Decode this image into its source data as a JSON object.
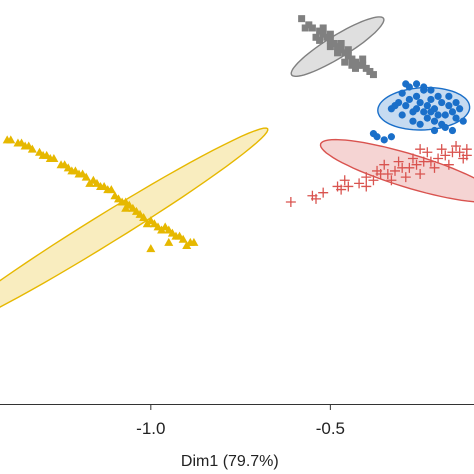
{
  "chart_data": {
    "type": "scatter",
    "title": "",
    "xlabel": "Dim1 (79.7%)",
    "ylabel": "",
    "xlim": [
      -1.42,
      -0.1
    ],
    "ylim": [
      -0.75,
      0.55
    ],
    "x_ticks": [
      {
        "value": -1.0,
        "label": "-1.0"
      },
      {
        "value": -0.5,
        "label": "-0.5"
      }
    ],
    "grid": false,
    "legend": "none",
    "series": [
      {
        "color": "#e6b800",
        "marker": "triangle",
        "ellipse": {
          "cx": -1.13,
          "cy": -0.19,
          "rx": 0.56,
          "ry": 0.045,
          "angle_deg": 35.6
        },
        "points": [
          [
            -1.4,
            0.1
          ],
          [
            -1.37,
            0.09
          ],
          [
            -1.35,
            0.08
          ],
          [
            -1.36,
            0.09
          ],
          [
            -1.33,
            0.07
          ],
          [
            -1.31,
            0.06
          ],
          [
            -1.3,
            0.05
          ],
          [
            -1.28,
            0.04
          ],
          [
            -1.27,
            0.04
          ],
          [
            -1.25,
            0.02
          ],
          [
            -1.24,
            0.02
          ],
          [
            -1.23,
            0.01
          ],
          [
            -1.21,
            0.0
          ],
          [
            -1.2,
            -0.01
          ],
          [
            -1.19,
            -0.01
          ],
          [
            -1.18,
            -0.02
          ],
          [
            -1.16,
            -0.03
          ],
          [
            -1.15,
            -0.04
          ],
          [
            -1.14,
            -0.05
          ],
          [
            -1.13,
            -0.05
          ],
          [
            -1.12,
            -0.06
          ],
          [
            -1.11,
            -0.06
          ],
          [
            -1.1,
            -0.08
          ],
          [
            -1.09,
            -0.09
          ],
          [
            -1.08,
            -0.1
          ],
          [
            -1.07,
            -0.1
          ],
          [
            -1.06,
            -0.11
          ],
          [
            -1.05,
            -0.12
          ],
          [
            -1.04,
            -0.13
          ],
          [
            -1.03,
            -0.14
          ],
          [
            -1.02,
            -0.15
          ],
          [
            -1.0,
            -0.16
          ],
          [
            -0.99,
            -0.17
          ],
          [
            -0.98,
            -0.18
          ],
          [
            -0.96,
            -0.18
          ],
          [
            -0.95,
            -0.19
          ],
          [
            -0.94,
            -0.2
          ],
          [
            -0.92,
            -0.21
          ],
          [
            -0.91,
            -0.22
          ],
          [
            -0.89,
            -0.23
          ],
          [
            -0.88,
            -0.23
          ],
          [
            -0.93,
            -0.21
          ],
          [
            -0.97,
            -0.19
          ],
          [
            -1.01,
            -0.17
          ],
          [
            -1.07,
            -0.12
          ],
          [
            -1.17,
            -0.04
          ],
          [
            -1.22,
            0.0
          ],
          [
            -1.29,
            0.05
          ],
          [
            -1.34,
            0.08
          ],
          [
            -1.39,
            0.1
          ],
          [
            -1.0,
            -0.25
          ],
          [
            -0.95,
            -0.23
          ],
          [
            -0.9,
            -0.24
          ]
        ]
      },
      {
        "color": "#808080",
        "marker": "square",
        "ellipse": {
          "cx": -0.48,
          "cy": 0.4,
          "rx": 0.157,
          "ry": 0.034,
          "angle_deg": 35.7
        },
        "points": [
          [
            -0.58,
            0.49
          ],
          [
            -0.56,
            0.47
          ],
          [
            -0.55,
            0.46
          ],
          [
            -0.53,
            0.45
          ],
          [
            -0.52,
            0.44
          ],
          [
            -0.51,
            0.43
          ],
          [
            -0.5,
            0.42
          ],
          [
            -0.49,
            0.41
          ],
          [
            -0.48,
            0.4
          ],
          [
            -0.47,
            0.39
          ],
          [
            -0.46,
            0.38
          ],
          [
            -0.45,
            0.37
          ],
          [
            -0.44,
            0.36
          ],
          [
            -0.43,
            0.35
          ],
          [
            -0.42,
            0.34
          ],
          [
            -0.41,
            0.34
          ],
          [
            -0.4,
            0.33
          ],
          [
            -0.39,
            0.32
          ],
          [
            -0.38,
            0.31
          ],
          [
            -0.54,
            0.43
          ],
          [
            -0.5,
            0.44
          ],
          [
            -0.47,
            0.41
          ],
          [
            -0.45,
            0.39
          ],
          [
            -0.43,
            0.33
          ],
          [
            -0.46,
            0.35
          ],
          [
            -0.52,
            0.46
          ],
          [
            -0.57,
            0.46
          ],
          [
            -0.41,
            0.36
          ],
          [
            -0.48,
            0.38
          ],
          [
            -0.44,
            0.34
          ],
          [
            -0.5,
            0.4
          ],
          [
            -0.53,
            0.42
          ]
        ]
      },
      {
        "color": "#1a6fc9",
        "marker": "circle",
        "ellipse": {
          "cx": -0.24,
          "cy": 0.2,
          "rx": 0.128,
          "ry": 0.068,
          "angle_deg": 3.1
        },
        "points": [
          [
            -0.33,
            0.2
          ],
          [
            -0.31,
            0.22
          ],
          [
            -0.3,
            0.25
          ],
          [
            -0.29,
            0.21
          ],
          [
            -0.28,
            0.23
          ],
          [
            -0.27,
            0.19
          ],
          [
            -0.26,
            0.24
          ],
          [
            -0.25,
            0.22
          ],
          [
            -0.24,
            0.26
          ],
          [
            -0.23,
            0.21
          ],
          [
            -0.22,
            0.23
          ],
          [
            -0.21,
            0.2
          ],
          [
            -0.2,
            0.24
          ],
          [
            -0.19,
            0.22
          ],
          [
            -0.18,
            0.18
          ],
          [
            -0.17,
            0.21
          ],
          [
            -0.16,
            0.19
          ],
          [
            -0.15,
            0.17
          ],
          [
            -0.14,
            0.2
          ],
          [
            -0.27,
            0.16
          ],
          [
            -0.25,
            0.15
          ],
          [
            -0.23,
            0.17
          ],
          [
            -0.21,
            0.16
          ],
          [
            -0.19,
            0.15
          ],
          [
            -0.28,
            0.27
          ],
          [
            -0.26,
            0.28
          ],
          [
            -0.24,
            0.27
          ],
          [
            -0.22,
            0.26
          ],
          [
            -0.2,
            0.18
          ],
          [
            -0.18,
            0.14
          ],
          [
            -0.16,
            0.13
          ],
          [
            -0.3,
            0.18
          ],
          [
            -0.32,
            0.21
          ],
          [
            -0.29,
            0.28
          ],
          [
            -0.17,
            0.24
          ],
          [
            -0.15,
            0.22
          ],
          [
            -0.13,
            0.16
          ],
          [
            -0.24,
            0.19
          ],
          [
            -0.22,
            0.19
          ],
          [
            -0.26,
            0.2
          ],
          [
            -0.38,
            0.12
          ],
          [
            -0.37,
            0.11
          ],
          [
            -0.35,
            0.1
          ],
          [
            -0.33,
            0.11
          ],
          [
            -0.21,
            0.13
          ]
        ]
      },
      {
        "color": "#d9534f",
        "marker": "plus",
        "ellipse": {
          "cx": -0.28,
          "cy": 0.0,
          "rx": 0.262,
          "ry": 0.053,
          "angle_deg": -19.5
        },
        "points": [
          [
            -0.52,
            -0.07
          ],
          [
            -0.48,
            -0.05
          ],
          [
            -0.45,
            -0.05
          ],
          [
            -0.42,
            -0.04
          ],
          [
            -0.4,
            -0.02
          ],
          [
            -0.38,
            -0.03
          ],
          [
            -0.36,
            -0.01
          ],
          [
            -0.34,
            -0.01
          ],
          [
            -0.32,
            0.0
          ],
          [
            -0.3,
            0.01
          ],
          [
            -0.28,
            0.01
          ],
          [
            -0.26,
            0.02
          ],
          [
            -0.24,
            0.03
          ],
          [
            -0.22,
            0.03
          ],
          [
            -0.2,
            0.04
          ],
          [
            -0.18,
            0.05
          ],
          [
            -0.16,
            0.06
          ],
          [
            -0.14,
            0.06
          ],
          [
            -0.12,
            0.07
          ],
          [
            -0.33,
            -0.03
          ],
          [
            -0.29,
            -0.02
          ],
          [
            -0.25,
            -0.01
          ],
          [
            -0.21,
            0.01
          ],
          [
            -0.17,
            0.02
          ],
          [
            -0.13,
            0.04
          ],
          [
            -0.35,
            0.02
          ],
          [
            -0.31,
            0.03
          ],
          [
            -0.27,
            0.04
          ],
          [
            -0.23,
            0.06
          ],
          [
            -0.19,
            0.07
          ],
          [
            -0.4,
            -0.05
          ],
          [
            -0.37,
            0.0
          ],
          [
            -0.46,
            -0.03
          ],
          [
            -0.15,
            0.08
          ],
          [
            -0.12,
            0.05
          ],
          [
            -0.25,
            0.07
          ],
          [
            -0.61,
            -0.1
          ],
          [
            -0.55,
            -0.08
          ],
          [
            -0.54,
            -0.09
          ],
          [
            -0.47,
            -0.06
          ]
        ]
      }
    ]
  }
}
